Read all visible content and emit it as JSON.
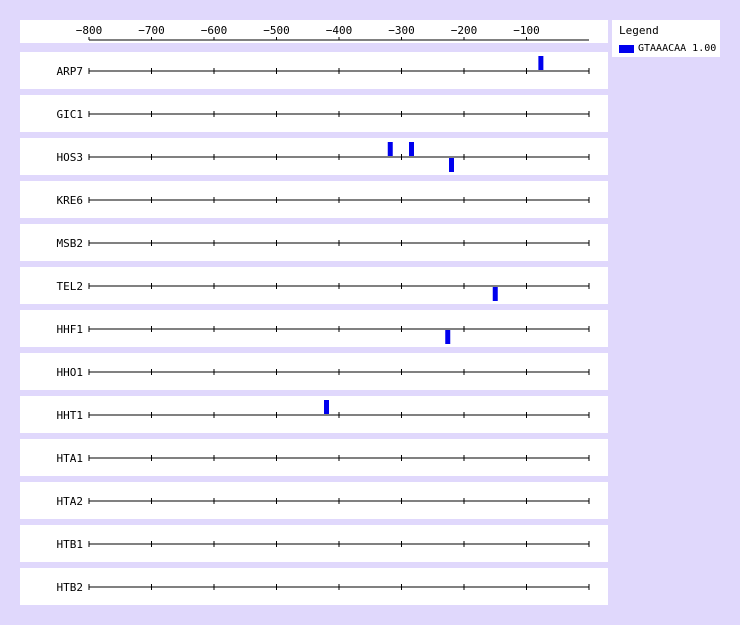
{
  "chart_data": {
    "type": "scatter",
    "title": "",
    "xlabel": "",
    "ylabel": "",
    "xlim": [
      -800,
      0
    ],
    "x_ticks": [
      -800,
      -700,
      -600,
      -500,
      -400,
      -300,
      -200,
      -100
    ],
    "x_tick_labels": [
      "−800",
      "−700",
      "−600",
      "−500",
      "−400",
      "−300",
      "−200",
      "−100"
    ],
    "legend": {
      "title": "Legend",
      "placement": "right",
      "entries": [
        {
          "label": "GTAAACAA 1.00",
          "color": "#0000ee"
        }
      ]
    },
    "genes": [
      {
        "name": "ARP7",
        "sites": [
          {
            "x": -77,
            "strand": "+"
          }
        ]
      },
      {
        "name": "GIC1",
        "sites": []
      },
      {
        "name": "HOS3",
        "sites": [
          {
            "x": -318,
            "strand": "+"
          },
          {
            "x": -284,
            "strand": "+"
          },
          {
            "x": -220,
            "strand": "-"
          }
        ]
      },
      {
        "name": "KRE6",
        "sites": []
      },
      {
        "name": "MSB2",
        "sites": []
      },
      {
        "name": "TEL2",
        "sites": [
          {
            "x": -150,
            "strand": "-"
          }
        ]
      },
      {
        "name": "HHF1",
        "sites": [
          {
            "x": -226,
            "strand": "-"
          }
        ]
      },
      {
        "name": "HHO1",
        "sites": []
      },
      {
        "name": "HHT1",
        "sites": [
          {
            "x": -420,
            "strand": "+"
          }
        ]
      },
      {
        "name": "HTA1",
        "sites": []
      },
      {
        "name": "HTA2",
        "sites": []
      },
      {
        "name": "HTB1",
        "sites": []
      },
      {
        "name": "HTB2",
        "sites": []
      }
    ]
  }
}
